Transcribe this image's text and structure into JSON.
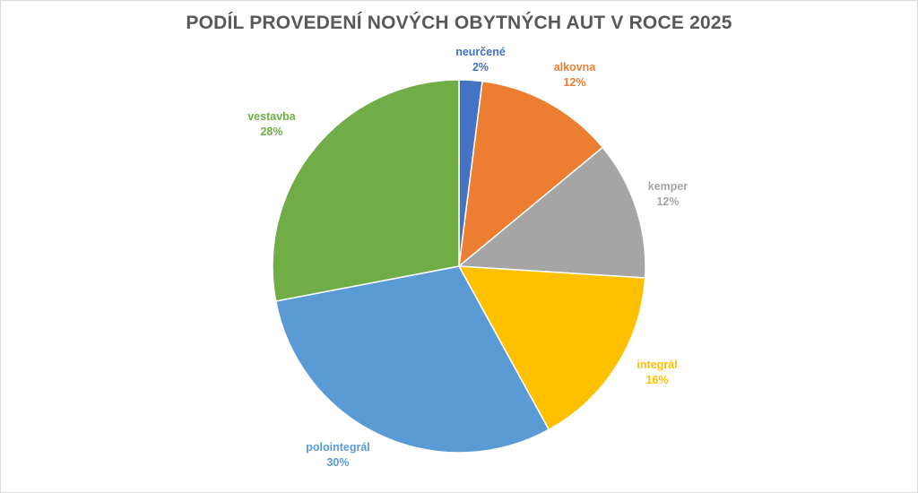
{
  "chart_data": {
    "type": "pie",
    "title": "PODÍL PROVEDENÍ NOVÝCH OBYTNÝCH AUT V ROCE 2025",
    "slices": [
      {
        "label": "neurčené",
        "value": 2,
        "value_label": "2%",
        "color": "#4472C4"
      },
      {
        "label": "alkovna",
        "value": 12,
        "value_label": "12%",
        "color": "#ED7D31"
      },
      {
        "label": "kemper",
        "value": 12,
        "value_label": "12%",
        "color": "#A5A5A5"
      },
      {
        "label": "integrál",
        "value": 16,
        "value_label": "16%",
        "color": "#FFC000"
      },
      {
        "label": "polointegrál",
        "value": 30,
        "value_label": "30%",
        "color": "#5B9BD5"
      },
      {
        "label": "vestavba",
        "value": 28,
        "value_label": "28%",
        "color": "#70AD47"
      }
    ],
    "start_angle": "top",
    "direction": "clockwise",
    "legend": "none"
  }
}
